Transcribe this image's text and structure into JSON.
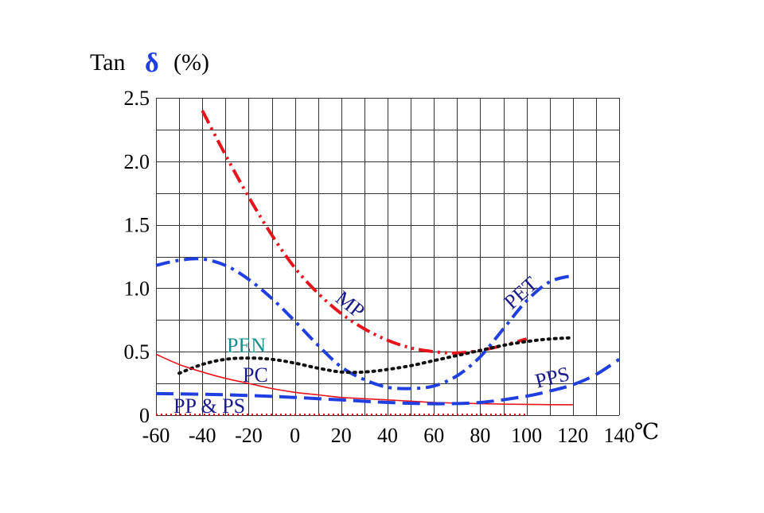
{
  "chart_data": {
    "type": "line",
    "title": {
      "prefix": "Tan",
      "symbol": "δ",
      "suffix": "(%)",
      "symbol_color": "#1f3fe0"
    },
    "x_unit": "℃",
    "xlim": [
      -60,
      140
    ],
    "ylim": [
      0,
      2.5
    ],
    "x_ticks": [
      -60,
      -40,
      -20,
      0,
      20,
      40,
      60,
      80,
      100,
      120,
      140
    ],
    "y_ticks": [
      0,
      0.5,
      1.0,
      1.5,
      2.0,
      2.5
    ],
    "x_tick_labels": [
      "-60",
      "-40",
      "-20",
      "0",
      "20",
      "40",
      "60",
      "80",
      "100",
      "120",
      "140"
    ],
    "y_tick_labels": [
      "0",
      "0.5",
      "1.0",
      "1.5",
      "2.0",
      "2.5"
    ],
    "grid": true,
    "series": [
      {
        "name": "MP",
        "color": "#e8141c",
        "style": "dash-dot-dot",
        "label_color": "#1a1a8c",
        "x": [
          -40,
          -30,
          -20,
          -10,
          0,
          10,
          20,
          30,
          40,
          50,
          60,
          70,
          80,
          90,
          100
        ],
        "y": [
          2.4,
          2.05,
          1.72,
          1.42,
          1.16,
          0.96,
          0.8,
          0.68,
          0.59,
          0.53,
          0.5,
          0.49,
          0.51,
          0.55,
          0.6
        ]
      },
      {
        "name": "PET",
        "color": "#1f3fe0",
        "style": "dash-dot",
        "label_color": "#1a1a8c",
        "x": [
          -60,
          -50,
          -40,
          -30,
          -20,
          -10,
          0,
          10,
          20,
          30,
          40,
          50,
          60,
          70,
          80,
          90,
          100,
          110,
          120
        ],
        "y": [
          1.18,
          1.22,
          1.23,
          1.18,
          1.07,
          0.92,
          0.74,
          0.55,
          0.38,
          0.28,
          0.22,
          0.21,
          0.23,
          0.31,
          0.46,
          0.68,
          0.9,
          1.05,
          1.1
        ]
      },
      {
        "name": "PEN",
        "color": "#111111",
        "style": "dotted",
        "label_color": "#1a8c8c",
        "x": [
          -50,
          -40,
          -30,
          -20,
          -10,
          0,
          10,
          20,
          30,
          40,
          50,
          60,
          70,
          80,
          90,
          100,
          110,
          120
        ],
        "y": [
          0.33,
          0.4,
          0.44,
          0.45,
          0.44,
          0.41,
          0.37,
          0.34,
          0.34,
          0.36,
          0.39,
          0.43,
          0.47,
          0.51,
          0.55,
          0.58,
          0.6,
          0.61
        ]
      },
      {
        "name": "PC",
        "color": "#e8141c",
        "style": "solid",
        "label_color": "#1a1a8c",
        "x": [
          -60,
          -50,
          -40,
          -30,
          -20,
          -10,
          0,
          10,
          20,
          30,
          40,
          50,
          60,
          70,
          80,
          90,
          100,
          110,
          120
        ],
        "y": [
          0.48,
          0.4,
          0.34,
          0.29,
          0.25,
          0.21,
          0.18,
          0.16,
          0.14,
          0.13,
          0.12,
          0.11,
          0.1,
          0.095,
          0.09,
          0.087,
          0.085,
          0.083,
          0.082
        ]
      },
      {
        "name": "PPS",
        "color": "#1f3fe0",
        "style": "dashed",
        "label_color": "#1a1a8c",
        "x": [
          -60,
          -40,
          -20,
          0,
          20,
          40,
          60,
          80,
          100,
          110,
          120,
          130,
          140
        ],
        "y": [
          0.17,
          0.165,
          0.155,
          0.14,
          0.12,
          0.1,
          0.09,
          0.1,
          0.15,
          0.19,
          0.24,
          0.32,
          0.44
        ]
      },
      {
        "name": "PP & PS",
        "color": "#e8141c",
        "style": "fine-dotted",
        "label_color": "#1a1a8c",
        "x": [
          -60,
          100
        ],
        "y": [
          0.005,
          0.005
        ]
      }
    ]
  }
}
